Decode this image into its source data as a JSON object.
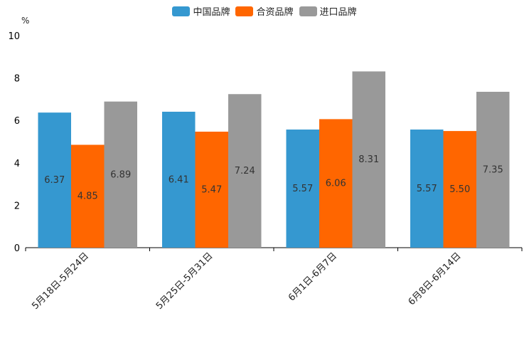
{
  "chart_data": {
    "type": "bar",
    "title": "",
    "unit": "%",
    "xlabel": "",
    "ylabel": "%",
    "ylim": [
      0,
      10
    ],
    "yticks": [
      0,
      2,
      4,
      6,
      8,
      10
    ],
    "grid": false,
    "legend_position": "top-center",
    "categories": [
      "5月18日-5月24日",
      "5月25日-5月31日",
      "6月1日-6月7日",
      "6月8日-6月14日"
    ],
    "series": [
      {
        "name": "中国品牌",
        "color": "#3598d0",
        "values": [
          6.37,
          6.41,
          5.57,
          5.57
        ],
        "labels": [
          "6.37",
          "6.41",
          "5.57",
          "5.57"
        ]
      },
      {
        "name": "合资品牌",
        "color": "#ff6600",
        "values": [
          4.85,
          5.47,
          6.06,
          5.5
        ],
        "labels": [
          "4.85",
          "5.47",
          "6.06",
          "5.50"
        ]
      },
      {
        "name": "进口品牌",
        "color": "#999999",
        "values": [
          6.89,
          7.24,
          8.31,
          7.35
        ],
        "labels": [
          "6.89",
          "7.24",
          "8.31",
          "7.35"
        ]
      }
    ]
  }
}
